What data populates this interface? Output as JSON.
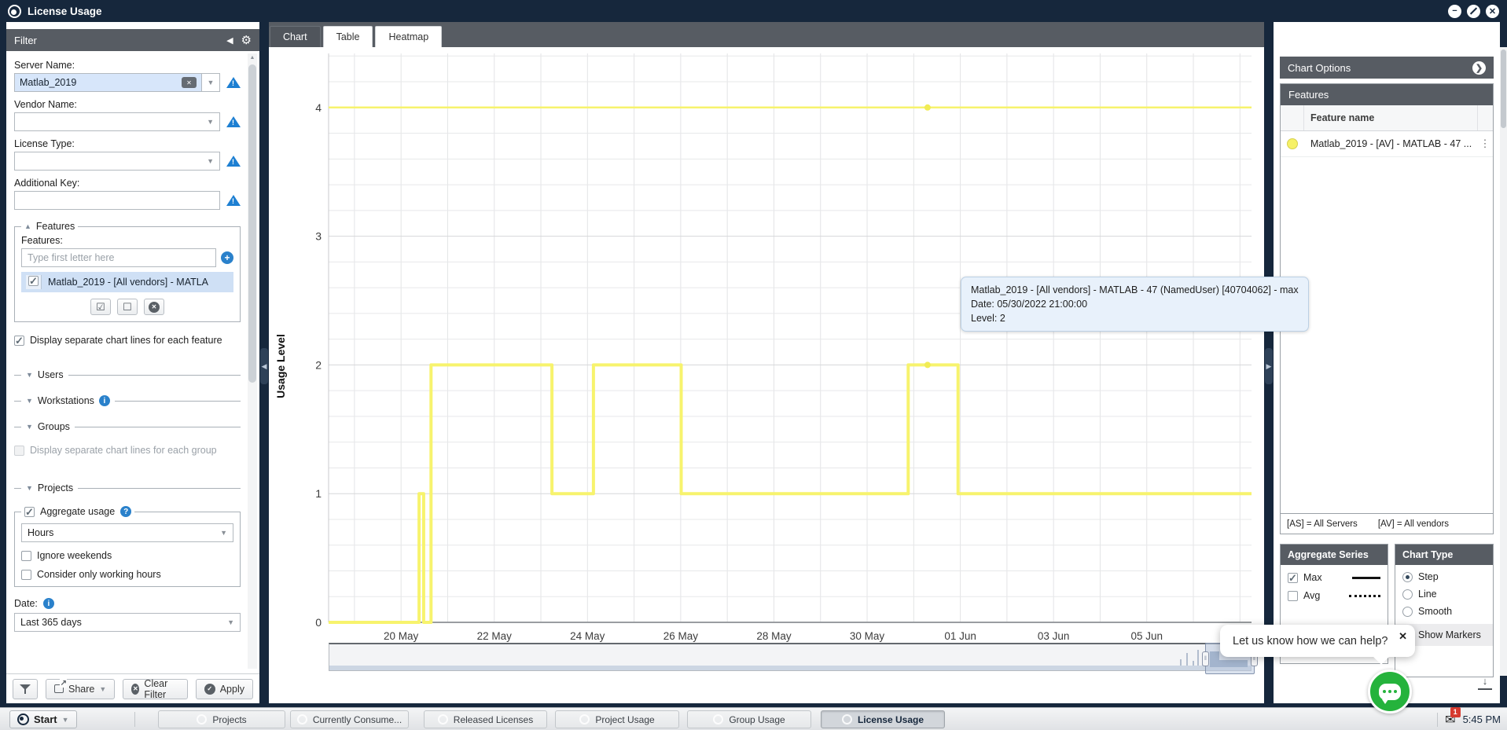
{
  "window": {
    "title": "License Usage"
  },
  "sidebar": {
    "header": "Filter",
    "labels": {
      "server": "Server Name:",
      "vendor": "Vendor Name:",
      "license": "License Type:",
      "additional": "Additional Key:"
    },
    "server_value": "Matlab_2019",
    "features": {
      "legend": "Features",
      "label": "Features:",
      "placeholder": "Type first letter here",
      "selected": "Matlab_2019 - [All vendors] - MATLA"
    },
    "display_feature": "Display separate chart lines for each feature",
    "sections": {
      "users": "Users",
      "workstations": "Workstations",
      "groups": "Groups",
      "projects": "Projects"
    },
    "display_group": "Display separate chart lines for each group",
    "aggregate": {
      "label": "Aggregate usage",
      "interval": "Hours",
      "ignore": "Ignore weekends",
      "working": "Consider only working hours"
    },
    "date_label": "Date:",
    "date_value": "Last 365 days",
    "actions": {
      "share": "Share",
      "clear": "Clear Filter",
      "apply": "Apply"
    }
  },
  "tabs": [
    {
      "label": "Chart",
      "active": true
    },
    {
      "label": "Table",
      "active": false
    },
    {
      "label": "Heatmap",
      "active": false
    }
  ],
  "tooltip": {
    "title": "Matlab_2019 - [All vendors] - MATLAB - 47 (NamedUser) [40704062] - max",
    "date": "Date: 05/30/2022 21:00:00",
    "level": "Level: 2"
  },
  "options": {
    "header": "Chart Options",
    "features": {
      "header": "Features",
      "column": "Feature name",
      "row": "Matlab_2019 - [AV] - MATLAB - 47 ...",
      "footer_as": "[AS] = All Servers",
      "footer_av": "[AV] = All vendors"
    },
    "aggregate_series": {
      "header": "Aggregate Series",
      "max": "Max",
      "avg": "Avg"
    },
    "chart_type": {
      "header": "Chart Type",
      "step": "Step",
      "line": "Line",
      "smooth": "Smooth",
      "markers": "Show Markers"
    }
  },
  "help": {
    "text": "Let us know how we can help?"
  },
  "taskbar": {
    "start": "Start",
    "items": [
      {
        "label": "Projects",
        "active": false
      },
      {
        "label": "Currently Consume...",
        "active": false
      },
      {
        "label": "Released Licenses",
        "active": false
      },
      {
        "label": "Project Usage",
        "active": false
      },
      {
        "label": "Group Usage",
        "active": false
      },
      {
        "label": "License Usage",
        "active": true
      }
    ],
    "badge": "1",
    "time": "5:45 PM"
  },
  "accent_colors": {
    "series_yellow": "#f7f36d",
    "marker_yellow": "#f1ec55",
    "info_blue": "#2a81cb",
    "header_gray": "#575c63",
    "frame_navy": "#16273c",
    "chat_green": "#25b33c"
  },
  "chart_data": {
    "type": "line",
    "line_style": "step",
    "title": "",
    "xlabel": "",
    "ylabel": "Usage Level",
    "ylim": [
      0,
      4.42
    ],
    "yticks": [
      0,
      1,
      2,
      3,
      4
    ],
    "y_minor_step": 0.2,
    "grid": true,
    "x_axis": {
      "tick_labels": [
        "20 May",
        "22 May",
        "24 May",
        "26 May",
        "28 May",
        "30 May",
        "01 Jun",
        "03 Jun",
        "05 Jun"
      ],
      "tick_pct": [
        7.85,
        17.95,
        28.05,
        38.15,
        48.25,
        58.35,
        68.45,
        78.55,
        88.65
      ],
      "grid_start_pct": 2.8,
      "day_pct": 5.05
    },
    "series": [
      {
        "name": "Matlab_2019 - [AV] - MATLAB - 47 (NamedUser) [40704062] - max : constant level 4",
        "color": "#f7f36d",
        "width": 2.5,
        "points": [
          [
            0,
            4
          ],
          [
            100,
            4
          ]
        ]
      },
      {
        "name": "Matlab_2019 - [AV] - MATLAB - 47 (NamedUser) [40704062] - max : step usage",
        "color": "#f7f36d",
        "width": 4,
        "points": [
          [
            0,
            0
          ],
          [
            9.8,
            0
          ],
          [
            9.8,
            1
          ],
          [
            10.3,
            1
          ],
          [
            10.3,
            0
          ],
          [
            11.1,
            0
          ],
          [
            11.1,
            2
          ],
          [
            24.2,
            2
          ],
          [
            24.2,
            1
          ],
          [
            28.7,
            1
          ],
          [
            28.7,
            2
          ],
          [
            38.2,
            2
          ],
          [
            38.2,
            1
          ],
          [
            62.8,
            1
          ],
          [
            62.8,
            2
          ],
          [
            68.2,
            2
          ],
          [
            68.2,
            1
          ],
          [
            100,
            1
          ]
        ]
      }
    ],
    "markers": [
      [
        64.9,
        4
      ],
      [
        64.9,
        2
      ]
    ],
    "marker_color": "#f1ec55",
    "legend_position": "right-panel",
    "hovered_point": {
      "date": "05/30/2022 21:00:00",
      "level": 2
    }
  }
}
